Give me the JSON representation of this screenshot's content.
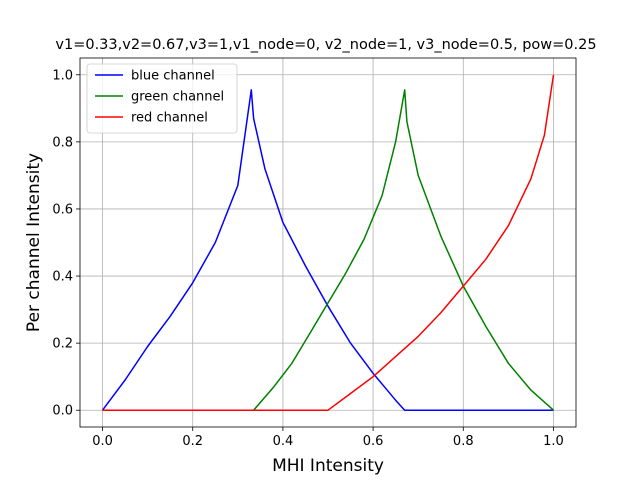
{
  "chart_data": {
    "type": "line",
    "title": "v1=0.33,v2=0.67,v3=1,v1_node=0, v2_node=1, v3_node=0.5, pow=0.25",
    "xlabel": "MHI Intensity",
    "ylabel": "Per channel Intensity",
    "xlim": [
      -0.05,
      1.05
    ],
    "ylim": [
      -0.05,
      1.05
    ],
    "xticks": [
      0.0,
      0.2,
      0.4,
      0.6,
      0.8,
      1.0
    ],
    "xtick_labels": [
      "0.0",
      "0.2",
      "0.4",
      "0.6",
      "0.8",
      "1.0"
    ],
    "yticks": [
      0.0,
      0.2,
      0.4,
      0.6,
      0.8,
      1.0
    ],
    "ytick_labels": [
      "0.0",
      "0.2",
      "0.4",
      "0.6",
      "0.8",
      "1.0"
    ],
    "grid": true,
    "legend_position": "top-left",
    "series": [
      {
        "name": "blue channel",
        "color": "#0000ff",
        "x": [
          0.0,
          0.05,
          0.1,
          0.15,
          0.2,
          0.25,
          0.3,
          0.33,
          0.335,
          0.36,
          0.4,
          0.45,
          0.5,
          0.55,
          0.6,
          0.65,
          0.67,
          1.0
        ],
        "y": [
          0.0,
          0.09,
          0.19,
          0.28,
          0.38,
          0.5,
          0.67,
          0.955,
          0.87,
          0.72,
          0.56,
          0.43,
          0.31,
          0.2,
          0.11,
          0.03,
          0.0,
          0.0
        ]
      },
      {
        "name": "green channel",
        "color": "#008000",
        "x": [
          0.0,
          0.335,
          0.38,
          0.42,
          0.46,
          0.5,
          0.54,
          0.58,
          0.62,
          0.65,
          0.67,
          0.675,
          0.7,
          0.75,
          0.8,
          0.85,
          0.9,
          0.95,
          1.0
        ],
        "y": [
          0.0,
          0.0,
          0.07,
          0.14,
          0.23,
          0.32,
          0.41,
          0.51,
          0.64,
          0.8,
          0.955,
          0.86,
          0.7,
          0.52,
          0.37,
          0.25,
          0.14,
          0.06,
          0.0
        ]
      },
      {
        "name": "red channel",
        "color": "#ff0000",
        "x": [
          0.0,
          0.5,
          0.55,
          0.6,
          0.65,
          0.7,
          0.75,
          0.8,
          0.85,
          0.9,
          0.95,
          0.98,
          1.0
        ],
        "y": [
          0.0,
          0.0,
          0.05,
          0.1,
          0.16,
          0.22,
          0.29,
          0.37,
          0.45,
          0.55,
          0.69,
          0.82,
          1.0
        ]
      }
    ]
  }
}
